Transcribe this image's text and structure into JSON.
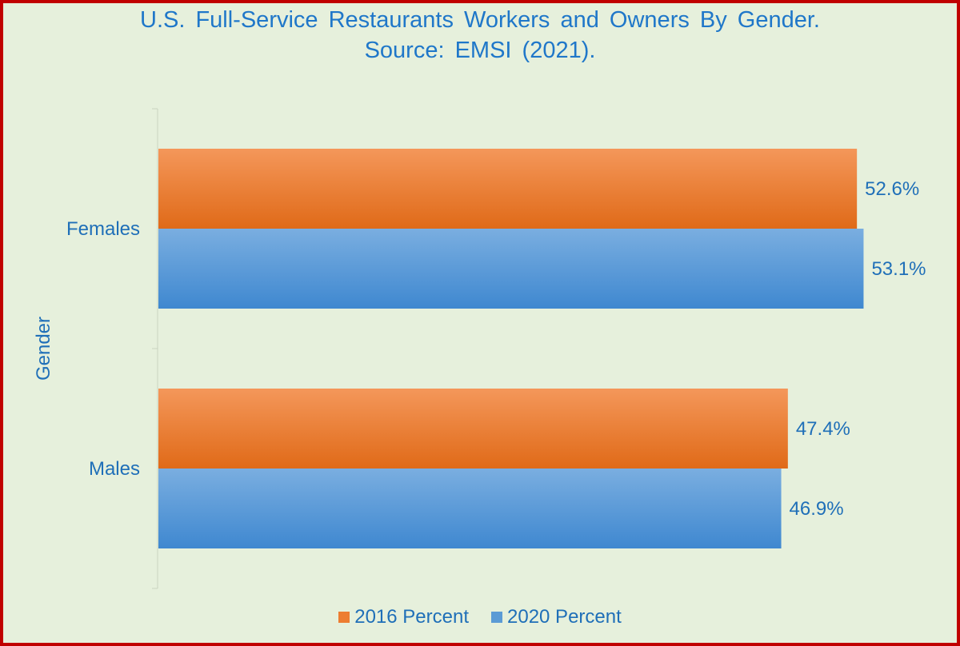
{
  "chart_data": {
    "type": "bar",
    "orientation": "horizontal",
    "title": "U.S. Full-Service Restaurants Workers and Owners By Gender.",
    "subtitle": "Source: EMSI (2021).",
    "xlabel": "",
    "ylabel": "Gender",
    "categories": [
      "Females",
      "Males"
    ],
    "series": [
      {
        "name": "2016 Percent",
        "values": [
          52.6,
          47.4
        ],
        "labels": [
          "52.6%",
          "47.4%"
        ],
        "color": "#ed7d31"
      },
      {
        "name": "2020 Percent",
        "values": [
          53.1,
          46.9
        ],
        "labels": [
          "53.1%",
          "46.9%"
        ],
        "color": "#5b9bd5"
      }
    ],
    "xlim": [
      0,
      56
    ],
    "grid": false,
    "legend_position": "bottom"
  }
}
